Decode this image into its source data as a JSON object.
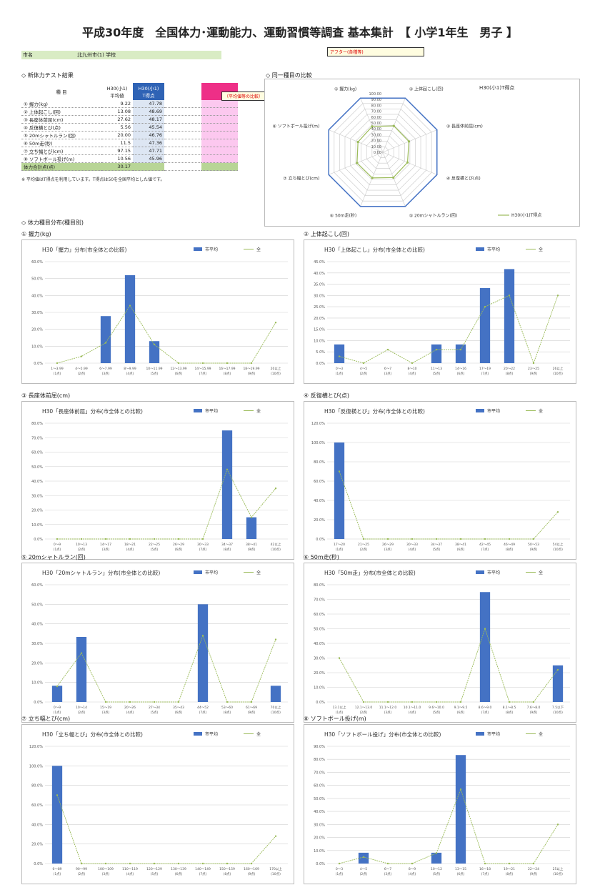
{
  "page": {
    "title": "平成30年度　全国体力･運動能力、運動習慣等調査 基本集計　【 小学1年生　男子 】"
  },
  "header": {
    "left_label": "市名",
    "mid_label": "北九州市(1) 学校",
    "callout_top": "アフター(各種等)",
    "callout_side": "（平均値等の比較）"
  },
  "results": {
    "section_label": "◇ 新体力テスト結果",
    "col_item": "種 目",
    "col_a": "H30(小1)\n平均値",
    "col_b": "H30(小1)\nT得点",
    "rows": [
      {
        "name": "① 握力(kg)",
        "a": "9.22",
        "b": "47.78"
      },
      {
        "name": "② 上体起こし(回)",
        "a": "13.08",
        "b": "48.69"
      },
      {
        "name": "③ 長座体前屈(cm)",
        "a": "27.62",
        "b": "48.17"
      },
      {
        "name": "④ 反復横とび(点)",
        "a": "5.56",
        "b": "45.54"
      },
      {
        "name": "⑤ 20mシャトルラン(回)",
        "a": "20.00",
        "b": "46.76"
      },
      {
        "name": "⑥ 50m走(秒)",
        "a": "11.5",
        "b": "47.36"
      },
      {
        "name": "⑦ 立ち幅とび(cm)",
        "a": "97.15",
        "b": "47.71"
      },
      {
        "name": "⑧ ソフトボール投げ(m)",
        "a": "10.56",
        "b": "45.96"
      }
    ],
    "total_label": "体力合計点(点)",
    "total_value": "30.17",
    "note": "※ 平均値はT得点を利用しています。T得点は50を全国平均とした値です。"
  },
  "radar": {
    "section_label": "◇ 同一種目の比較",
    "legend": "H30(小1)T得点",
    "axes": [
      "① 握力(kg)",
      "② 上体起こし(回)",
      "③ 長座体前屈(cm)",
      "④ 反復横とび(点)",
      "⑤ 20mシャトルラン(回)",
      "⑥ 50m走(秒)",
      "⑦ 立ち幅とび(cm)",
      "⑧ ソフトボール投げ(m)"
    ],
    "tick_labels": [
      "0.00",
      "10.00",
      "20.00",
      "30.00",
      "40.00",
      "50.00",
      "60.00",
      "70.00",
      "80.00",
      "90.00",
      "100.00"
    ]
  },
  "dist_section_label": "◇ 体力種目分布(種目別)",
  "colors": {
    "bar": "#4472c4",
    "line": "#9bbb59",
    "accent": "#ee2f87"
  },
  "chart_data": [
    {
      "type": "bar",
      "label": "① 握力(kg)",
      "title": "H30「握力」分布(市全体との比較)",
      "legend": [
        "市平均",
        "全"
      ],
      "categories": [
        "1～3.99\n(1点)",
        "4～5.99\n(2点)",
        "6～7.99\n(3点)",
        "8～9.99\n(4点)",
        "10～11.99\n(5点)",
        "12～13.99\n(6点)",
        "14～15.99\n(7点)",
        "16～17.99\n(8点)",
        "18～19.99\n(9点)",
        "20以上\n(10点)"
      ],
      "bar_values": [
        0,
        0,
        27.8,
        52,
        13,
        0,
        0,
        0,
        0,
        0
      ],
      "line_values": [
        0,
        4,
        12,
        34,
        11,
        0,
        0,
        0,
        0,
        24
      ],
      "ylim": [
        0,
        60
      ],
      "yticks": [
        "0.0%",
        "10.0%",
        "20.0%",
        "30.0%",
        "40.0%",
        "50.0%",
        "60.0%"
      ]
    },
    {
      "type": "bar",
      "label": "② 上体起こし(回)",
      "title": "H30「上体起こし」分布(市全体との比較)",
      "legend": [
        "市平均",
        "全"
      ],
      "categories": [
        "0～3\n(1点)",
        "4～5\n(2点)",
        "6～7\n(3点)",
        "8～10\n(4点)",
        "11～13\n(5点)",
        "14～16\n(6点)",
        "17～19\n(7点)",
        "20～22\n(8点)",
        "23～25\n(9点)",
        "26以上\n(10点)"
      ],
      "bar_values": [
        8.3,
        0,
        0,
        0,
        8.3,
        8.3,
        33.3,
        41.7,
        0,
        0
      ],
      "line_values": [
        3,
        0,
        6,
        0,
        6,
        6,
        25,
        30,
        0,
        30
      ],
      "ylim": [
        0,
        45
      ],
      "yticks": [
        "0.0%",
        "5.0%",
        "10.0%",
        "15.0%",
        "20.0%",
        "25.0%",
        "30.0%",
        "35.0%",
        "40.0%",
        "45.0%"
      ]
    },
    {
      "type": "bar",
      "label": "③ 長座体前屈(cm)",
      "title": "H30「長座体前屈」分布(市全体との比較)",
      "legend": [
        "市平均",
        "全"
      ],
      "categories": [
        "0～9\n(1点)",
        "10～13\n(2点)",
        "14～17\n(3点)",
        "18～21\n(4点)",
        "22～25\n(5点)",
        "26～29\n(6点)",
        "30～33\n(7点)",
        "34～37\n(8点)",
        "38～41\n(9点)",
        "42以上\n(10点)"
      ],
      "bar_values": [
        0,
        0,
        0,
        0,
        0,
        0,
        0,
        75,
        15,
        0
      ],
      "line_values": [
        0,
        0,
        0,
        0,
        0,
        0,
        0,
        48,
        15,
        35
      ],
      "ylim": [
        0,
        80
      ],
      "yticks": [
        "0.0%",
        "10.0%",
        "20.0%",
        "30.0%",
        "40.0%",
        "50.0%",
        "60.0%",
        "70.0%",
        "80.0%"
      ]
    },
    {
      "type": "bar",
      "label": "④ 反復横とび(点)",
      "title": "H30「反復横とび」分布(市全体との比較)",
      "legend": [
        "市平均",
        "全"
      ],
      "categories": [
        "17～20\n(1点)",
        "21～25\n(2点)",
        "26～29\n(3点)",
        "30～33\n(4点)",
        "34～37\n(5点)",
        "38～41\n(6点)",
        "42～45\n(7点)",
        "46～49\n(8点)",
        "50～53\n(9点)",
        "54以上\n(10点)"
      ],
      "bar_values": [
        100,
        0,
        0,
        0,
        0,
        0,
        0,
        0,
        0,
        0
      ],
      "line_values": [
        70,
        0,
        0,
        0,
        0,
        0,
        0,
        0,
        0,
        28
      ],
      "ylim": [
        0,
        120
      ],
      "yticks": [
        "0.0%",
        "20.0%",
        "40.0%",
        "60.0%",
        "80.0%",
        "100.0%",
        "120.0%"
      ]
    },
    {
      "type": "bar",
      "label": "⑤ 20mシャトルラン(回)",
      "title": "H30「20mシャトルラン」分布(市全体との比較)",
      "legend": [
        "市平均",
        "全"
      ],
      "categories": [
        "0～9\n(1点)",
        "10～14\n(2点)",
        "15～19\n(3点)",
        "20～26\n(4点)",
        "27～34\n(5点)",
        "35～43\n(6点)",
        "44～52\n(7点)",
        "53～60\n(8点)",
        "61～69\n(9点)",
        "70以上\n(10点)"
      ],
      "bar_values": [
        8.3,
        33.3,
        0,
        0,
        0,
        0,
        50,
        0,
        0,
        8.3
      ],
      "line_values": [
        8,
        25,
        0,
        0,
        0,
        0,
        34,
        0,
        0,
        32
      ],
      "ylim": [
        0,
        60
      ],
      "yticks": [
        "0.0%",
        "10.0%",
        "20.0%",
        "30.0%",
        "40.0%",
        "50.0%",
        "60.0%"
      ]
    },
    {
      "type": "bar",
      "label": "⑥ 50m走(秒)",
      "title": "H30「50m走」分布(市全体との比較)",
      "legend": [
        "市平均",
        "全"
      ],
      "categories": [
        "13.1以上\n(1点)",
        "12.1～13.0\n(2点)",
        "11.1～12.0\n(3点)",
        "10.1～11.0\n(4点)",
        "9.6～10.0\n(5点)",
        "9.1～9.5\n(6点)",
        "8.6～9.0\n(7点)",
        "8.1～8.5\n(8点)",
        "7.6～8.0\n(9点)",
        "7.5以下\n(10点)"
      ],
      "bar_values": [
        0,
        0,
        0,
        0,
        0,
        0,
        75,
        0,
        0,
        25
      ],
      "line_values": [
        30,
        0,
        0,
        0,
        0,
        0,
        50,
        0,
        0,
        22
      ],
      "ylim": [
        0,
        80
      ],
      "yticks": [
        "0.0%",
        "10.0%",
        "20.0%",
        "30.0%",
        "40.0%",
        "50.0%",
        "60.0%",
        "70.0%",
        "80.0%"
      ]
    },
    {
      "type": "bar",
      "label": "⑦ 立ち幅とび(cm)",
      "title": "H30「立ち幅とび」分布(市全体との比較)",
      "legend": [
        "市平均",
        "全"
      ],
      "categories": [
        "0～89\n(1点)",
        "90～99\n(2点)",
        "100～109\n(3点)",
        "110～119\n(4点)",
        "120～129\n(5点)",
        "130～139\n(6点)",
        "140～149\n(7点)",
        "150～159\n(8点)",
        "160～169\n(9点)",
        "170以上\n(10点)"
      ],
      "bar_values": [
        100,
        0,
        0,
        0,
        0,
        0,
        0,
        0,
        0,
        0
      ],
      "line_values": [
        70,
        0,
        0,
        0,
        0,
        0,
        0,
        0,
        0,
        28
      ],
      "ylim": [
        0,
        120
      ],
      "yticks": [
        "0.0%",
        "20.0%",
        "40.0%",
        "60.0%",
        "80.0%",
        "100.0%",
        "120.0%"
      ]
    },
    {
      "type": "bar",
      "label": "⑧ ソフトボール投げ(m)",
      "title": "H30「ソフトボール投げ」分布(市全体との比較)",
      "legend": [
        "市平均",
        "全"
      ],
      "categories": [
        "0～3\n(1点)",
        "4～5\n(2点)",
        "6～7\n(3点)",
        "8～9\n(4点)",
        "10～12\n(5点)",
        "13～15\n(6点)",
        "16～18\n(7点)",
        "19～21\n(8点)",
        "22～24\n(9点)",
        "25以上\n(10点)"
      ],
      "bar_values": [
        0,
        8.3,
        0,
        0,
        8.3,
        83.3,
        0,
        0,
        0,
        0
      ],
      "line_values": [
        0,
        5,
        0,
        0,
        8,
        57,
        0,
        0,
        0,
        30
      ],
      "ylim": [
        0,
        90
      ],
      "yticks": [
        "0.0%",
        "10.0%",
        "20.0%",
        "30.0%",
        "40.0%",
        "50.0%",
        "60.0%",
        "70.0%",
        "80.0%",
        "90.0%"
      ]
    }
  ]
}
